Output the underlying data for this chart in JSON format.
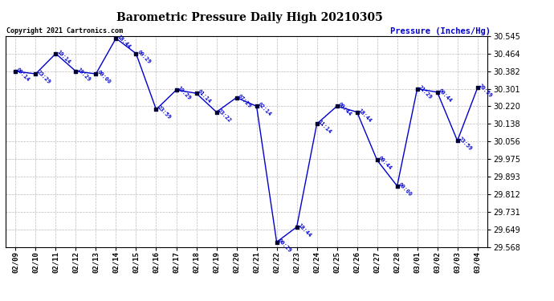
{
  "title": "Barometric Pressure Daily High 20210305",
  "ylabel": "Pressure (Inches/Hg)",
  "copyright": "Copyright 2021 Cartronics.com",
  "line_color": "#0000CC",
  "marker_color": "#000033",
  "bg_color": "#FFFFFF",
  "grid_color": "#BBBBBB",
  "ylim": [
    29.568,
    30.545
  ],
  "yticks": [
    29.568,
    29.649,
    29.731,
    29.812,
    29.893,
    29.975,
    30.056,
    30.138,
    30.22,
    30.301,
    30.382,
    30.464,
    30.545
  ],
  "dates": [
    "02/09",
    "02/10",
    "02/11",
    "02/12",
    "02/13",
    "02/14",
    "02/15",
    "02/16",
    "02/17",
    "02/18",
    "02/19",
    "02/20",
    "02/21",
    "02/22",
    "02/23",
    "02/24",
    "02/25",
    "02/26",
    "02/27",
    "02/28",
    "03/01",
    "03/02",
    "03/03",
    "03/04"
  ],
  "pressures": [
    30.382,
    30.37,
    30.464,
    30.382,
    30.37,
    30.535,
    30.464,
    30.205,
    30.295,
    30.28,
    30.193,
    30.26,
    30.22,
    29.59,
    29.66,
    30.138,
    30.22,
    30.193,
    29.97,
    29.85,
    30.301,
    30.285,
    30.06,
    30.305
  ],
  "times": [
    "09:14",
    "23:29",
    "10:14",
    "19:29",
    "00:00",
    "18:44",
    "00:29",
    "23:59",
    "10:29",
    "01:14",
    "23:22",
    "07:29",
    "02:14",
    "00:29",
    "18:44",
    "11:14",
    "00:44",
    "18:44",
    "00:44",
    "00:00",
    "21:29",
    "00:44",
    "23:59",
    "20:59"
  ]
}
